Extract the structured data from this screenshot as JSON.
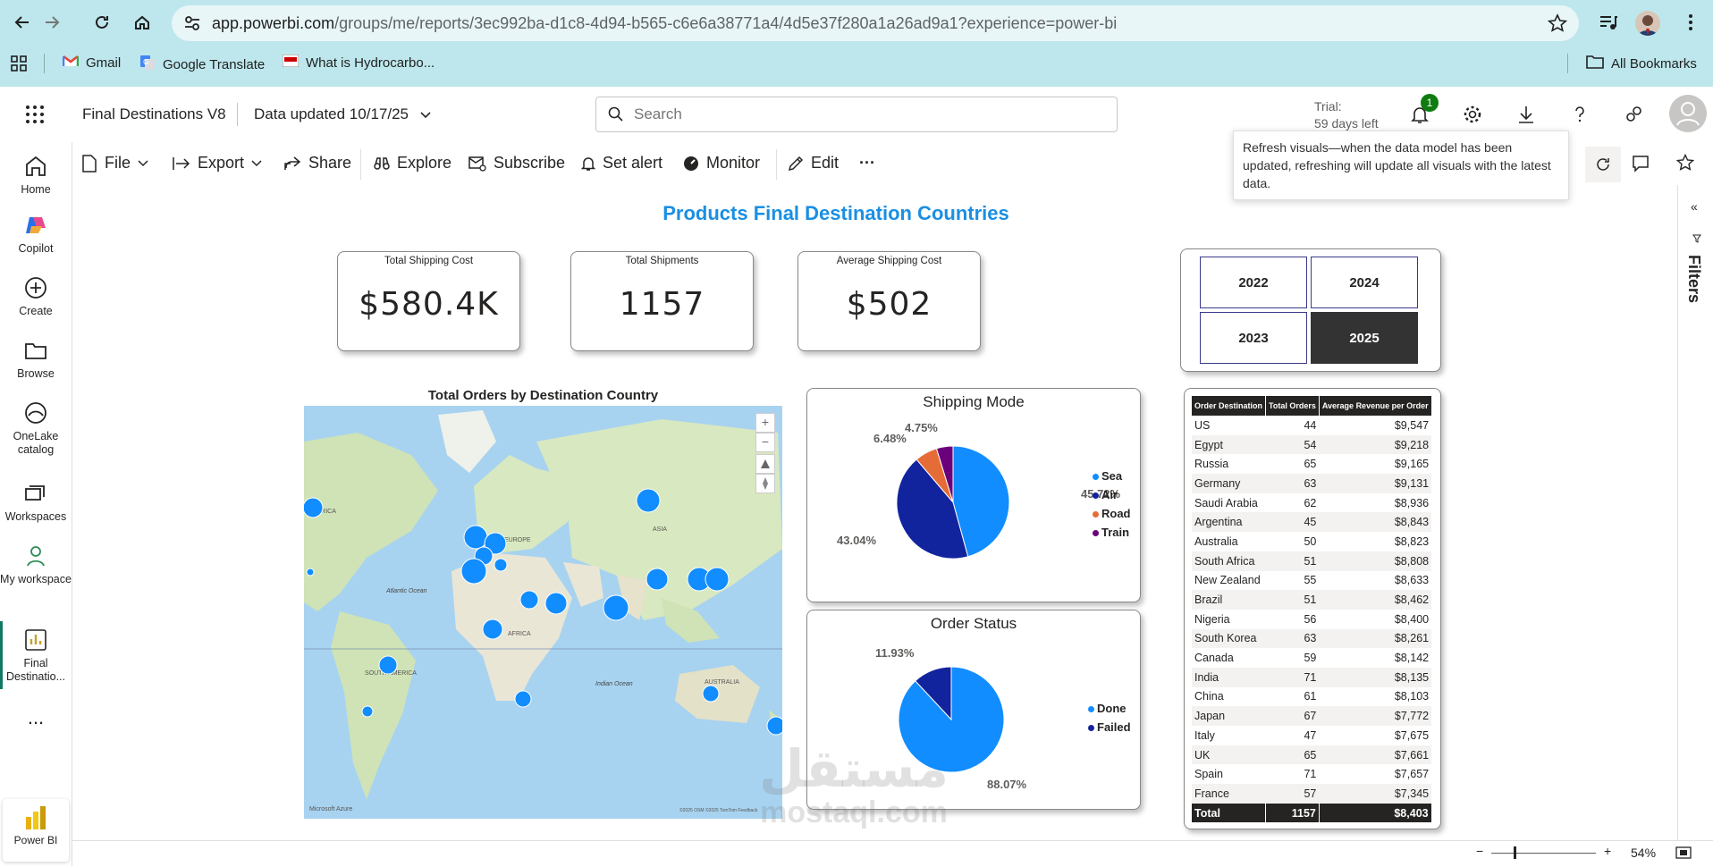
{
  "browser": {
    "url_host": "app.powerbi.com",
    "url_path": "/groups/me/reports/3ec992ba-d1c8-4d94-b565-c6e6a38771a4/4d5e37f280a1a26ad9a1?experience=power-bi",
    "bookmarks": [
      "Gmail",
      "Google Translate",
      "What is Hydrocarbo..."
    ],
    "all_bookmarks": "All Bookmarks"
  },
  "header": {
    "report_title": "Final Destinations V8",
    "data_updated": "Data updated 10/17/25",
    "search_placeholder": "Search",
    "trial_line1": "Trial:",
    "trial_line2": "59 days left",
    "notification_count": "1"
  },
  "left_nav": {
    "items": [
      {
        "label": "Home",
        "icon": "home-icon"
      },
      {
        "label": "Copilot",
        "icon": "copilot-icon"
      },
      {
        "label": "Create",
        "icon": "plus-circle-icon"
      },
      {
        "label": "Browse",
        "icon": "folder-icon"
      },
      {
        "label": "OneLake catalog",
        "icon": "onelake-icon"
      },
      {
        "label": "Workspaces",
        "icon": "workspaces-icon"
      },
      {
        "label": "My workspace",
        "icon": "person-icon"
      },
      {
        "label": "Final Destinatio...",
        "icon": "report-icon"
      }
    ],
    "more": "...",
    "product": "Power BI"
  },
  "toolbar": {
    "file": "File",
    "export": "Export",
    "share": "Share",
    "explore": "Explore",
    "subscribe": "Subscribe",
    "set_alert": "Set alert",
    "monitor": "Monitor",
    "edit": "Edit",
    "more": "···"
  },
  "tooltip": "Refresh visuals—when the data model has been updated, refreshing will update all visuals with the latest data.",
  "report": {
    "title": "Products Final Destination Countries",
    "kpis": [
      {
        "label": "Total Shipping Cost",
        "value": "$580.4K"
      },
      {
        "label": "Total Shipments",
        "value": "1157"
      },
      {
        "label": "Average Shipping Cost",
        "value": "$502"
      }
    ],
    "years": [
      "2022",
      "2024",
      "2023",
      "2025"
    ],
    "selected_year": "2025",
    "map": {
      "title": "Total Orders by Destination Country",
      "labels": [
        "AMERICA",
        "EUROPE",
        "ASIA",
        "Atlantic Ocean",
        "AFRICA",
        "SOUTH AMERICA",
        "Indian Ocean",
        "AUSTRALIA"
      ],
      "attribution_left": "Microsoft Azure",
      "attribution_right": "©2025 OSM ©2025 TomTom Feedback"
    }
  },
  "chart_data": [
    {
      "type": "pie",
      "title": "Shipping Mode",
      "categories": [
        "Sea",
        "Air",
        "Road",
        "Train"
      ],
      "values": [
        45.72,
        43.04,
        6.48,
        4.75
      ],
      "labels": [
        "45.72%",
        "43.04%",
        "6.48%",
        "4.75%"
      ],
      "colors": [
        "#118dff",
        "#12239e",
        "#e66c37",
        "#6b007b"
      ],
      "legend": "right"
    },
    {
      "type": "pie",
      "title": "Order Status",
      "categories": [
        "Done",
        "Failed"
      ],
      "values": [
        88.07,
        11.93
      ],
      "labels": [
        "88.07%",
        "11.93%"
      ],
      "colors": [
        "#118dff",
        "#12239e"
      ],
      "legend": "right"
    },
    {
      "type": "table",
      "columns": [
        "Order Destination",
        "Total Orders",
        "Average Revenue per Order"
      ],
      "rows": [
        [
          "US",
          "44",
          "$9,547"
        ],
        [
          "Egypt",
          "54",
          "$9,218"
        ],
        [
          "Russia",
          "65",
          "$9,165"
        ],
        [
          "Germany",
          "63",
          "$9,131"
        ],
        [
          "Saudi Arabia",
          "62",
          "$8,936"
        ],
        [
          "Argentina",
          "45",
          "$8,843"
        ],
        [
          "Australia",
          "50",
          "$8,823"
        ],
        [
          "South Africa",
          "51",
          "$8,808"
        ],
        [
          "New Zealand",
          "55",
          "$8,633"
        ],
        [
          "Brazil",
          "51",
          "$8,462"
        ],
        [
          "Nigeria",
          "56",
          "$8,400"
        ],
        [
          "South Korea",
          "63",
          "$8,261"
        ],
        [
          "Canada",
          "59",
          "$8,142"
        ],
        [
          "India",
          "71",
          "$8,135"
        ],
        [
          "China",
          "61",
          "$8,103"
        ],
        [
          "Japan",
          "67",
          "$7,772"
        ],
        [
          "Italy",
          "47",
          "$7,675"
        ],
        [
          "UK",
          "65",
          "$7,661"
        ],
        [
          "Spain",
          "71",
          "$7,657"
        ],
        [
          "France",
          "57",
          "$7,345"
        ]
      ],
      "total": [
        "Total",
        "1157",
        "$8,403"
      ]
    }
  ],
  "filters": {
    "label": "Filters"
  },
  "status": {
    "zoom": "54%"
  },
  "watermark": {
    "arabic": "مستقل",
    "latin": "mostaql.com"
  },
  "colors": {
    "accent": "#1a8fe3",
    "browser_bar": "#bde7ec"
  }
}
